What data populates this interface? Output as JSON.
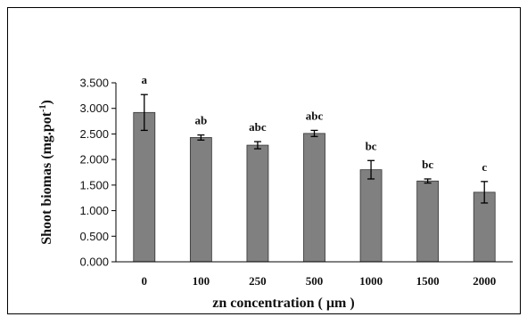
{
  "chart_data": {
    "type": "bar",
    "categories": [
      "0",
      "100",
      "250",
      "500",
      "1000",
      "1500",
      "2000"
    ],
    "values": [
      2.92,
      2.43,
      2.28,
      2.51,
      1.8,
      1.58,
      1.36
    ],
    "errors": [
      0.35,
      0.05,
      0.07,
      0.06,
      0.18,
      0.04,
      0.21
    ],
    "significance": [
      "a",
      "ab",
      "abc",
      "abc",
      "bc",
      "bc",
      "c"
    ],
    "y_ticks": [
      "0.000",
      "0.500",
      "1.000",
      "1.500",
      "2.000",
      "2.500",
      "3.000",
      "3.500"
    ],
    "ylim": [
      0,
      3.5
    ],
    "xlabel": "zn concentration ( µm )",
    "ylabel_main": "Shoot biomas (mg.pot",
    "ylabel_sup": "-1",
    "ylabel_end": ")",
    "grid": false,
    "legend": "none",
    "bar_color": "#808080",
    "axis_color": "#000000"
  }
}
